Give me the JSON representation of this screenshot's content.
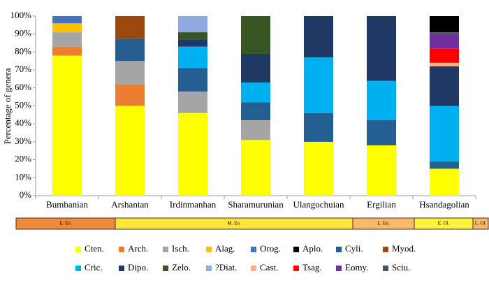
{
  "chart_data": {
    "type": "stacked_bar",
    "y_label": "Percentage of genera",
    "categories": [
      "Bumbanian",
      "Arshantan",
      "Irdinmanhan",
      "Sharamurunian",
      "Ulangochuian",
      "Ergilian",
      "Hsandagolian"
    ],
    "ylim": [
      0,
      100
    ],
    "yticks": [
      {
        "value": 0,
        "label": "0%"
      },
      {
        "value": 10,
        "label": "10%"
      },
      {
        "value": 20,
        "label": "20%"
      },
      {
        "value": 30,
        "label": "30%"
      },
      {
        "value": 40,
        "label": "40%"
      },
      {
        "value": 50,
        "label": "50%"
      },
      {
        "value": 60,
        "label": "60%"
      },
      {
        "value": 70,
        "label": "70%"
      },
      {
        "value": 80,
        "label": "80%"
      },
      {
        "value": 90,
        "label": "90%"
      },
      {
        "value": 100,
        "label": "100%"
      }
    ],
    "series": [
      {
        "name": "Cten.",
        "color": "#ffff00",
        "values": [
          78,
          50,
          46,
          31,
          30,
          28,
          15
        ]
      },
      {
        "name": "Arch.",
        "color": "#ed7d31",
        "values": [
          5,
          12,
          0,
          0,
          0,
          0,
          0
        ]
      },
      {
        "name": "Isch.",
        "color": "#a5a5a5",
        "values": [
          8,
          13,
          12,
          11,
          0,
          0,
          0
        ]
      },
      {
        "name": "Alag.",
        "color": "#ffc000",
        "values": [
          5,
          0,
          0,
          0,
          0,
          0,
          0
        ]
      },
      {
        "name": "Orog.",
        "color": "#4472c4",
        "values": [
          4,
          0,
          0,
          0,
          0,
          0,
          0
        ]
      },
      {
        "name": "Cyli.",
        "color": "#255e91",
        "values": [
          0,
          12.5,
          13,
          10,
          16,
          14,
          4
        ]
      },
      {
        "name": "Myod.",
        "color": "#9e480e",
        "values": [
          0,
          12.5,
          0,
          0,
          0,
          0,
          0
        ]
      },
      {
        "name": "Cric.",
        "color": "#00b0f0",
        "values": [
          0,
          0,
          12,
          11,
          31,
          22,
          31
        ]
      },
      {
        "name": "Dipo.",
        "color": "#1f3864",
        "values": [
          0,
          0,
          4,
          16,
          23,
          36,
          22
        ]
      },
      {
        "name": "Zelo.",
        "color": "#375623",
        "values": [
          0,
          0,
          4,
          21,
          0,
          0,
          0
        ]
      },
      {
        "name": "?Diat.",
        "color": "#8faadc",
        "values": [
          0,
          0,
          9,
          0,
          0,
          0,
          0
        ]
      },
      {
        "name": "Cast.",
        "color": "#f4b183",
        "values": [
          0,
          0,
          0,
          0,
          0,
          0,
          2
        ]
      },
      {
        "name": "Tsag.",
        "color": "#ff0000",
        "values": [
          0,
          0,
          0,
          0,
          0,
          0,
          8
        ]
      },
      {
        "name": "Eomy.",
        "color": "#7030a0",
        "values": [
          0,
          0,
          0,
          0,
          0,
          0,
          8
        ]
      },
      {
        "name": "Sciu.",
        "color": "#44546a",
        "values": [
          0,
          0,
          0,
          0,
          0,
          0,
          1
        ]
      },
      {
        "name": "Aplo.",
        "color": "#000000",
        "values": [
          0,
          0,
          0,
          0,
          0,
          0,
          9
        ]
      }
    ],
    "epochs": [
      {
        "label": "E. Eo.",
        "color": "#f0883a"
      },
      {
        "label": "M. Eo.",
        "color": "#ffe43a"
      },
      {
        "label": "L. Eo.",
        "color": "#fbb86a"
      },
      {
        "label": "E. Ol.",
        "color": "#fff23a"
      },
      {
        "label": "L. Ol.",
        "color": "#fbb86a"
      }
    ]
  }
}
